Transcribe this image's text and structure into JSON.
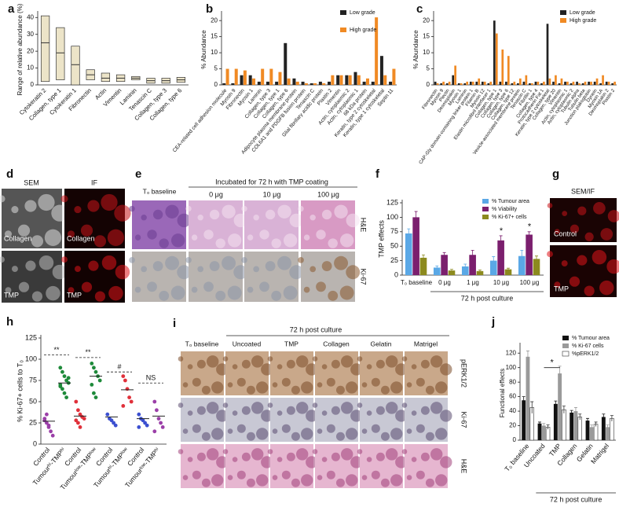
{
  "figure": {
    "panel_letters": [
      "a",
      "b",
      "c",
      "d",
      "e",
      "f",
      "g",
      "h",
      "i",
      "j"
    ]
  },
  "chart_data": [
    {
      "type": "range",
      "ylabel": "Range of relative abundance (%)",
      "categories": [
        "Cytokeratin 2",
        "Collagen, type 1",
        "Cytokeratin 1",
        "Fibronectin",
        "Actin",
        "Vimentin",
        "Laminin",
        "Tenascin C",
        "Collagen, type 3",
        "Collagen, type 6"
      ],
      "low": [
        2,
        3,
        0,
        3,
        2,
        2,
        3,
        1,
        1,
        1.5
      ],
      "median": [
        25,
        19,
        12,
        6,
        4,
        4,
        4,
        2.5,
        2.5,
        3
      ],
      "high": [
        41,
        34,
        23,
        9,
        7,
        6,
        5,
        4,
        4,
        4.5
      ],
      "color": "#ece4c8",
      "ylim": [
        0,
        42
      ],
      "yticks": [
        0,
        10,
        20,
        30,
        40
      ]
    },
    {
      "type": "bar",
      "ylabel": "% Abundance",
      "legend": "top-right",
      "categories": [
        "CEA-related cell adhesion molecule",
        "Myosin 9",
        "Fibronectin",
        "Myosin 1",
        "Laminin",
        "Collagen, type 3",
        "Collagen, type 1",
        "Collagen, type 6",
        "Adipocyte plasma membrane protein",
        "COL6A1 and PDGFB fusion protein",
        "Tenascin C",
        "Glial fibrillary acidic protein",
        "Plastin 2",
        "Vimentin",
        "Actin, cytoplasmic 2",
        "Actin, cytoplasmic 1",
        "68 kDa protein",
        "Keratin, type 2 cytoskeletal",
        "Keratin, type 1 cytoskeletal",
        "Septin 11"
      ],
      "series": [
        {
          "name": "Low grade",
          "color": "#222222",
          "values": [
            0.5,
            0.5,
            3,
            3,
            1,
            1,
            1,
            13,
            2,
            1,
            0.5,
            1,
            1,
            3,
            3,
            4,
            1,
            1,
            9,
            1
          ]
        },
        {
          "name": "High grade",
          "color": "#f08a24",
          "values": [
            5,
            5,
            4.5,
            2,
            5,
            5,
            4,
            2,
            1,
            0.5,
            0.5,
            0.5,
            3,
            3,
            3,
            3,
            2,
            21,
            3,
            5
          ]
        }
      ],
      "ylim": [
        0,
        22
      ],
      "yticks": [
        0,
        5,
        10,
        15,
        20
      ]
    },
    {
      "type": "bar",
      "ylabel": "% Abundance",
      "legend": "top-right",
      "categories": [
        "Fibronectin",
        "Myosin 9",
        "Plectin",
        "Desmoplakin",
        "Myosin 1",
        "Laminin",
        "CAP-Gly domain-containing linker protein 1",
        "Filamin B",
        "Myosin 12",
        "Elastin microfibril interfacer 1",
        "Collagen, type 1",
        "Collagen, type 3",
        "Collagen, type 6",
        "Collagen, type 12",
        "Vesicle-associated membrane protein",
        "Tenascin C",
        "Fibrillin 1",
        "Collagen, type 4",
        "Protocadherin Fat 1",
        "Keratin, type 2 cytoskeletal",
        "Collagen, type 20",
        "Vimentin",
        "Actin, cytoplasmic 1",
        "Actin, cytoplasmic 2",
        "Tubulin alpha",
        "Tubulin beta",
        "Junction plakoglobin",
        "Dynein",
        "Myosin 1A",
        "Desmoplakin 2",
        "Plastin 2"
      ],
      "series": [
        {
          "name": "Low grade",
          "color": "#222222",
          "values": [
            1,
            0.5,
            0.5,
            3,
            0.5,
            0.5,
            1,
            1,
            1,
            0.5,
            20,
            1,
            1,
            0.5,
            0.5,
            1,
            0.5,
            1,
            0.5,
            19,
            1,
            0.5,
            1,
            0.5,
            1,
            0.5,
            1,
            1,
            0.5,
            1,
            0.5
          ]
        },
        {
          "name": "High grade",
          "color": "#f08a24",
          "values": [
            0.5,
            1,
            1,
            6,
            0.5,
            1,
            1,
            2,
            1,
            1,
            16,
            11,
            9,
            1,
            2,
            3,
            0.5,
            1,
            1,
            2,
            3,
            2,
            1,
            1,
            0.5,
            1,
            1,
            2,
            3,
            1,
            1
          ]
        }
      ],
      "ylim": [
        0,
        22
      ],
      "yticks": [
        0,
        5,
        10,
        15,
        20
      ]
    },
    {
      "type": "bar",
      "ylabel": "TMP effects",
      "legend": "top-right",
      "group_label": "72 h post culture",
      "categories": [
        "T₀ baseline",
        "0 μg",
        "1 μg",
        "10 μg",
        "100 μg"
      ],
      "series": [
        {
          "name": "% Tumour area",
          "color": "#5aa8e6",
          "values": [
            72,
            13,
            15,
            25,
            33
          ],
          "errors": [
            8,
            3,
            4,
            7,
            10
          ]
        },
        {
          "name": "% Viability",
          "color": "#7b1f6e",
          "values": [
            100,
            35,
            35,
            60,
            70
          ],
          "errors": [
            10,
            4,
            8,
            8,
            5
          ]
        },
        {
          "name": "% Ki-67+ cells",
          "color": "#8c8a1e",
          "values": [
            30,
            8,
            7,
            10,
            28
          ],
          "errors": [
            5,
            2,
            2,
            2,
            5
          ]
        }
      ],
      "significance": [
        null,
        null,
        null,
        "*",
        "*"
      ],
      "ylim": [
        0,
        125
      ],
      "yticks": [
        0,
        25,
        50,
        75,
        100,
        125
      ]
    },
    {
      "type": "dot",
      "ylabel": "% Ki-67+ cells to T₀",
      "categories": [
        "Control",
        "Tumourʰⁱ-TMPʰⁱ",
        "Control",
        "Tumourˡᵒʷ-TMPˡᵒʷ",
        "Control",
        "Tumourʰⁱ-TMPˡᵒʷ",
        "Control",
        "Tumourˡᵒʷ-TMPʰⁱ"
      ],
      "colors": [
        "#9b3fa8",
        "#1e8a3a",
        "#e0303a",
        "#1e8a3a",
        "#3b4fd0",
        "#e0303a",
        "#3b4fd0",
        "#9b3fa8"
      ],
      "points": [
        [
          30,
          25,
          20,
          15,
          10,
          28,
          35,
          22
        ],
        [
          90,
          85,
          80,
          75,
          72,
          70,
          65,
          60,
          55,
          78,
          68
        ],
        [
          50,
          40,
          35,
          32,
          30,
          28,
          25,
          20
        ],
        [
          95,
          90,
          85,
          80,
          75,
          70,
          60,
          55
        ],
        [
          35,
          30,
          28,
          25,
          22
        ],
        [
          80,
          75,
          65,
          55,
          50,
          45
        ],
        [
          35,
          30,
          28,
          25,
          22,
          20
        ],
        [
          50,
          40,
          30,
          25,
          20,
          15
        ]
      ],
      "means": [
        27,
        72,
        33,
        80,
        32,
        64,
        30,
        33
      ],
      "comparisons": [
        {
          "label": "**",
          "value": 105
        },
        {
          "label": "**",
          "value": 102
        },
        {
          "label": "#",
          "value": 85
        },
        {
          "label": "NS",
          "value": 72
        }
      ],
      "ylim": [
        0,
        125
      ],
      "yticks": [
        0,
        25,
        50,
        75,
        100,
        125
      ]
    },
    {
      "type": "bar",
      "ylabel": "Functional effects",
      "legend": "top-right",
      "group_label": "72 h post culture",
      "categories": [
        "T₀ baseline",
        "Uncoated",
        "TMP",
        "Collagen",
        "Gelatin",
        "Matrigel"
      ],
      "series": [
        {
          "name": "% Tumour area",
          "color": "#111111",
          "values": [
            55,
            23,
            50,
            38,
            27,
            32
          ],
          "errors": [
            5,
            2,
            4,
            3,
            3,
            4
          ]
        },
        {
          "name": "% Ki-67 cells",
          "color": "#9a9a9a",
          "values": [
            115,
            20,
            92,
            40,
            18,
            18
          ],
          "errors": [
            8,
            3,
            10,
            5,
            3,
            3
          ]
        },
        {
          "name": "%pERK1/2",
          "color": "#ffffff",
          "values": [
            45,
            18,
            42,
            32,
            22,
            30
          ],
          "errors": [
            8,
            3,
            5,
            4,
            3,
            4
          ]
        }
      ],
      "comparisons": [
        {
          "label": "*",
          "value": 100
        }
      ],
      "ylim": [
        0,
        130
      ],
      "yticks": [
        0,
        20,
        40,
        60,
        80,
        100,
        120
      ]
    }
  ],
  "image_panels": {
    "d": {
      "columns": [
        "SEM",
        "IF"
      ],
      "labels": [
        "Collagen",
        "Collagen",
        "TMP",
        "TMP"
      ]
    },
    "e": {
      "baseline": "T₀ baseline",
      "heading": "Incubated for 72 h with TMP coating",
      "columns": [
        "0 μg",
        "10 μg",
        "100 μg"
      ],
      "rows": [
        "H&E",
        "Ki-67"
      ]
    },
    "g": {
      "heading": "SEM/IF",
      "labels": [
        "Control",
        "TMP"
      ]
    },
    "i": {
      "heading": "72 h post culture",
      "columns": [
        "T₀ baseline",
        "Uncoated",
        "TMP",
        "Collagen",
        "Gelatin",
        "Matrigel"
      ],
      "rows": [
        "pERK1/2",
        "Ki-67",
        "H&E"
      ]
    }
  }
}
